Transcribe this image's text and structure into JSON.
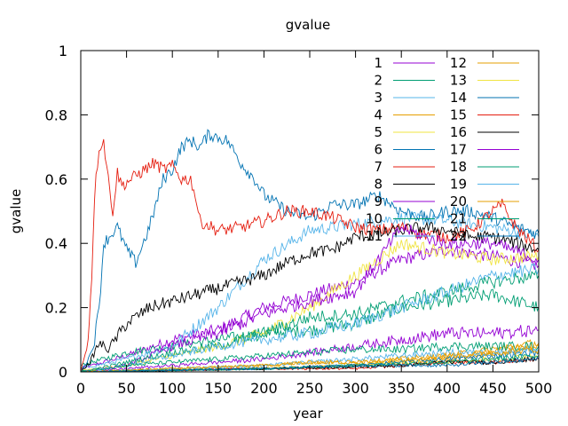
{
  "chart_data": {
    "type": "line",
    "title": "gvalue",
    "xlabel": "year",
    "ylabel": "gvalue",
    "xlim": [
      0,
      500
    ],
    "ylim": [
      0,
      1
    ],
    "x_ticks": [
      0,
      50,
      100,
      150,
      200,
      250,
      300,
      350,
      400,
      450,
      500
    ],
    "y_ticks": [
      0,
      0.2,
      0.4,
      0.6,
      0.8,
      1
    ],
    "y_tick_labels": [
      "0",
      "0.2",
      "0.4",
      "0.6",
      "0.8",
      "1"
    ],
    "grid": false,
    "legend_position": "top-right",
    "series": [
      {
        "name": "1",
        "color": "#9400d3",
        "points": [
          [
            0,
            0.01
          ],
          [
            50,
            0.05
          ],
          [
            100,
            0.1
          ],
          [
            150,
            0.13
          ],
          [
            200,
            0.2
          ],
          [
            250,
            0.24
          ],
          [
            300,
            0.28
          ],
          [
            350,
            0.35
          ],
          [
            400,
            0.38
          ],
          [
            450,
            0.36
          ],
          [
            500,
            0.33
          ]
        ]
      },
      {
        "name": "2",
        "color": "#009e73",
        "points": [
          [
            0,
            0.02
          ],
          [
            50,
            0.06
          ],
          [
            100,
            0.08
          ],
          [
            150,
            0.1
          ],
          [
            200,
            0.12
          ],
          [
            250,
            0.13
          ],
          [
            300,
            0.15
          ],
          [
            350,
            0.2
          ],
          [
            400,
            0.22
          ],
          [
            450,
            0.24
          ],
          [
            500,
            0.2
          ]
        ]
      },
      {
        "name": "3",
        "color": "#56b4e9",
        "points": [
          [
            0,
            0.01
          ],
          [
            50,
            0.04
          ],
          [
            100,
            0.08
          ],
          [
            150,
            0.2
          ],
          [
            200,
            0.35
          ],
          [
            250,
            0.44
          ],
          [
            300,
            0.46
          ],
          [
            350,
            0.48
          ],
          [
            400,
            0.47
          ],
          [
            450,
            0.45
          ],
          [
            500,
            0.42
          ]
        ]
      },
      {
        "name": "4",
        "color": "#e69f00",
        "points": [
          [
            0,
            0
          ],
          [
            100,
            0.005
          ],
          [
            200,
            0.01
          ],
          [
            300,
            0.02
          ],
          [
            350,
            0.03
          ],
          [
            400,
            0.04
          ],
          [
            450,
            0.06
          ],
          [
            500,
            0.08
          ]
        ]
      },
      {
        "name": "5",
        "color": "#f0e442",
        "points": [
          [
            0,
            0.005
          ],
          [
            50,
            0.02
          ],
          [
            100,
            0.05
          ],
          [
            150,
            0.08
          ],
          [
            200,
            0.12
          ],
          [
            250,
            0.2
          ],
          [
            300,
            0.3
          ],
          [
            350,
            0.4
          ],
          [
            400,
            0.37
          ],
          [
            450,
            0.35
          ],
          [
            500,
            0.36
          ]
        ]
      },
      {
        "name": "6",
        "color": "#0072b2",
        "points": [
          [
            0,
            0
          ],
          [
            10,
            0.05
          ],
          [
            15,
            0.1
          ],
          [
            20,
            0.2
          ],
          [
            25,
            0.4
          ],
          [
            40,
            0.45
          ],
          [
            50,
            0.38
          ],
          [
            60,
            0.34
          ],
          [
            75,
            0.45
          ],
          [
            90,
            0.6
          ],
          [
            100,
            0.63
          ],
          [
            110,
            0.7
          ],
          [
            120,
            0.72
          ],
          [
            130,
            0.7
          ],
          [
            140,
            0.74
          ],
          [
            150,
            0.73
          ],
          [
            160,
            0.72
          ],
          [
            175,
            0.65
          ],
          [
            190,
            0.6
          ],
          [
            200,
            0.55
          ],
          [
            225,
            0.5
          ],
          [
            250,
            0.48
          ],
          [
            275,
            0.52
          ],
          [
            300,
            0.52
          ],
          [
            325,
            0.55
          ],
          [
            350,
            0.5
          ],
          [
            375,
            0.48
          ],
          [
            400,
            0.5
          ],
          [
            425,
            0.5
          ],
          [
            450,
            0.48
          ],
          [
            475,
            0.45
          ],
          [
            500,
            0.43
          ]
        ]
      },
      {
        "name": "7",
        "color": "#e51e10",
        "points": [
          [
            0,
            0
          ],
          [
            8,
            0.1
          ],
          [
            12,
            0.3
          ],
          [
            15,
            0.55
          ],
          [
            20,
            0.7
          ],
          [
            25,
            0.72
          ],
          [
            30,
            0.6
          ],
          [
            35,
            0.5
          ],
          [
            40,
            0.62
          ],
          [
            45,
            0.58
          ],
          [
            55,
            0.6
          ],
          [
            65,
            0.62
          ],
          [
            80,
            0.65
          ],
          [
            90,
            0.63
          ],
          [
            100,
            0.64
          ],
          [
            110,
            0.6
          ],
          [
            120,
            0.6
          ],
          [
            125,
            0.55
          ],
          [
            130,
            0.47
          ],
          [
            150,
            0.44
          ],
          [
            175,
            0.45
          ],
          [
            200,
            0.47
          ],
          [
            225,
            0.5
          ],
          [
            250,
            0.5
          ],
          [
            275,
            0.48
          ],
          [
            300,
            0.45
          ],
          [
            325,
            0.44
          ],
          [
            350,
            0.45
          ],
          [
            375,
            0.43
          ],
          [
            400,
            0.42
          ],
          [
            425,
            0.44
          ],
          [
            450,
            0.5
          ],
          [
            460,
            0.52
          ],
          [
            475,
            0.45
          ],
          [
            500,
            0.38
          ]
        ]
      },
      {
        "name": "8",
        "color": "#000000",
        "points": [
          [
            0,
            0
          ],
          [
            10,
            0.03
          ],
          [
            20,
            0.09
          ],
          [
            30,
            0.07
          ],
          [
            50,
            0.15
          ],
          [
            75,
            0.2
          ],
          [
            100,
            0.22
          ],
          [
            125,
            0.24
          ],
          [
            150,
            0.26
          ],
          [
            175,
            0.28
          ],
          [
            200,
            0.3
          ],
          [
            225,
            0.34
          ],
          [
            250,
            0.37
          ],
          [
            275,
            0.38
          ],
          [
            300,
            0.42
          ],
          [
            325,
            0.43
          ],
          [
            350,
            0.44
          ],
          [
            375,
            0.45
          ],
          [
            400,
            0.44
          ],
          [
            425,
            0.42
          ],
          [
            450,
            0.42
          ],
          [
            475,
            0.4
          ],
          [
            500,
            0.38
          ]
        ]
      },
      {
        "name": "9",
        "color": "#9400d3",
        "points": [
          [
            0,
            0
          ],
          [
            50,
            0.02
          ],
          [
            100,
            0.08
          ],
          [
            150,
            0.12
          ],
          [
            200,
            0.18
          ],
          [
            250,
            0.22
          ],
          [
            300,
            0.25
          ],
          [
            325,
            0.35
          ],
          [
            350,
            0.45
          ],
          [
            375,
            0.42
          ],
          [
            400,
            0.4
          ],
          [
            450,
            0.4
          ],
          [
            500,
            0.35
          ]
        ]
      },
      {
        "name": "10",
        "color": "#009e73",
        "points": [
          [
            0,
            0
          ],
          [
            50,
            0.03
          ],
          [
            100,
            0.06
          ],
          [
            150,
            0.08
          ],
          [
            200,
            0.12
          ],
          [
            250,
            0.17
          ],
          [
            300,
            0.18
          ],
          [
            350,
            0.22
          ],
          [
            400,
            0.25
          ],
          [
            450,
            0.28
          ],
          [
            500,
            0.3
          ]
        ]
      },
      {
        "name": "11",
        "color": "#56b4e9",
        "points": [
          [
            0,
            0
          ],
          [
            50,
            0.02
          ],
          [
            100,
            0.05
          ],
          [
            150,
            0.08
          ],
          [
            200,
            0.1
          ],
          [
            250,
            0.12
          ],
          [
            300,
            0.15
          ],
          [
            350,
            0.2
          ],
          [
            400,
            0.25
          ],
          [
            450,
            0.3
          ],
          [
            500,
            0.32
          ]
        ]
      },
      {
        "name": "12",
        "color": "#e69f00",
        "points": [
          [
            0,
            0
          ],
          [
            100,
            0.01
          ],
          [
            200,
            0.02
          ],
          [
            250,
            0.03
          ],
          [
            300,
            0.03
          ],
          [
            350,
            0.04
          ],
          [
            400,
            0.05
          ],
          [
            450,
            0.07
          ],
          [
            500,
            0.09
          ]
        ]
      },
      {
        "name": "13",
        "color": "#f0e442",
        "points": [
          [
            0,
            0
          ],
          [
            100,
            0.005
          ],
          [
            200,
            0.01
          ],
          [
            300,
            0.02
          ],
          [
            350,
            0.03
          ],
          [
            400,
            0.03
          ],
          [
            450,
            0.04
          ],
          [
            500,
            0.05
          ]
        ]
      },
      {
        "name": "14",
        "color": "#0072b2",
        "points": [
          [
            0,
            0
          ],
          [
            100,
            0.005
          ],
          [
            200,
            0.01
          ],
          [
            300,
            0.02
          ],
          [
            350,
            0.03
          ],
          [
            400,
            0.04
          ],
          [
            450,
            0.05
          ],
          [
            500,
            0.06
          ]
        ]
      },
      {
        "name": "15",
        "color": "#e51e10",
        "points": [
          [
            0,
            0
          ],
          [
            100,
            0.005
          ],
          [
            200,
            0.01
          ],
          [
            300,
            0.01
          ],
          [
            350,
            0.02
          ],
          [
            400,
            0.03
          ],
          [
            450,
            0.03
          ],
          [
            500,
            0.04
          ]
        ]
      },
      {
        "name": "16",
        "color": "#000000",
        "points": [
          [
            0,
            0
          ],
          [
            100,
            0.005
          ],
          [
            200,
            0.01
          ],
          [
            300,
            0.015
          ],
          [
            350,
            0.02
          ],
          [
            400,
            0.03
          ],
          [
            450,
            0.03
          ],
          [
            500,
            0.04
          ]
        ]
      },
      {
        "name": "17",
        "color": "#9400d3",
        "points": [
          [
            0,
            0
          ],
          [
            50,
            0.01
          ],
          [
            100,
            0.02
          ],
          [
            150,
            0.03
          ],
          [
            200,
            0.04
          ],
          [
            250,
            0.06
          ],
          [
            300,
            0.08
          ],
          [
            350,
            0.1
          ],
          [
            400,
            0.12
          ],
          [
            450,
            0.12
          ],
          [
            500,
            0.13
          ]
        ]
      },
      {
        "name": "18",
        "color": "#009e73",
        "points": [
          [
            0,
            0
          ],
          [
            50,
            0.02
          ],
          [
            100,
            0.03
          ],
          [
            150,
            0.04
          ],
          [
            200,
            0.05
          ],
          [
            250,
            0.06
          ],
          [
            300,
            0.07
          ],
          [
            350,
            0.07
          ],
          [
            400,
            0.08
          ],
          [
            450,
            0.08
          ],
          [
            500,
            0.08
          ]
        ]
      },
      {
        "name": "19",
        "color": "#56b4e9",
        "points": [
          [
            0,
            0
          ],
          [
            100,
            0.01
          ],
          [
            200,
            0.02
          ],
          [
            300,
            0.04
          ],
          [
            350,
            0.05
          ],
          [
            400,
            0.06
          ],
          [
            450,
            0.06
          ],
          [
            500,
            0.07
          ]
        ]
      },
      {
        "name": "20",
        "color": "#e69f00",
        "points": [
          [
            0,
            0
          ],
          [
            100,
            0.01
          ],
          [
            200,
            0.02
          ],
          [
            250,
            0.03
          ],
          [
            300,
            0.03
          ],
          [
            350,
            0.04
          ],
          [
            400,
            0.05
          ],
          [
            450,
            0.06
          ],
          [
            500,
            0.07
          ]
        ]
      },
      {
        "name": "21",
        "color": "#009e73",
        "points": [
          [
            0,
            0
          ],
          [
            100,
            0.005
          ],
          [
            200,
            0.01
          ],
          [
            300,
            0.02
          ],
          [
            400,
            0.03
          ],
          [
            450,
            0.04
          ],
          [
            500,
            0.05
          ]
        ]
      },
      {
        "name": "22",
        "color": "#0072b2",
        "points": [
          [
            0,
            0
          ],
          [
            100,
            0.005
          ],
          [
            200,
            0.01
          ],
          [
            300,
            0.02
          ],
          [
            400,
            0.02
          ],
          [
            450,
            0.03
          ],
          [
            500,
            0.04
          ]
        ]
      }
    ]
  }
}
